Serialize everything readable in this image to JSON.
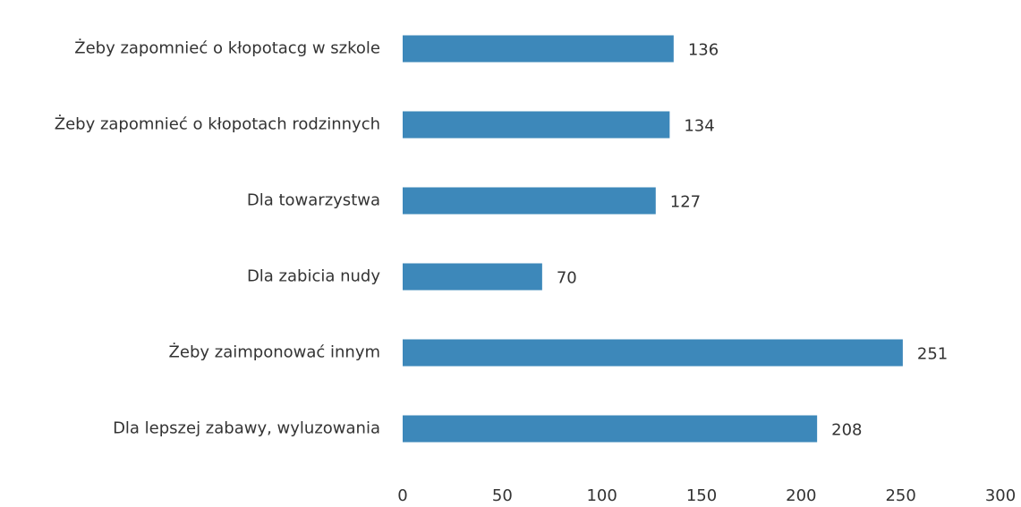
{
  "chart_data": {
    "type": "bar",
    "orientation": "horizontal",
    "categories": [
      "Żeby zapomnieć o kłopotacg w szkole",
      "Żeby zapomnieć o kłopotach rodzinnych",
      "Dla towarzystwa",
      "Dla zabicia nudy",
      "Żeby zaimponować innym",
      "Dla lepszej zabawy, wyluzowania"
    ],
    "values": [
      136,
      134,
      127,
      70,
      251,
      208
    ],
    "color": "#3d88ba",
    "xlim": [
      0,
      300
    ],
    "xticks": [
      0,
      50,
      100,
      150,
      200,
      250,
      300
    ],
    "grid": false
  }
}
